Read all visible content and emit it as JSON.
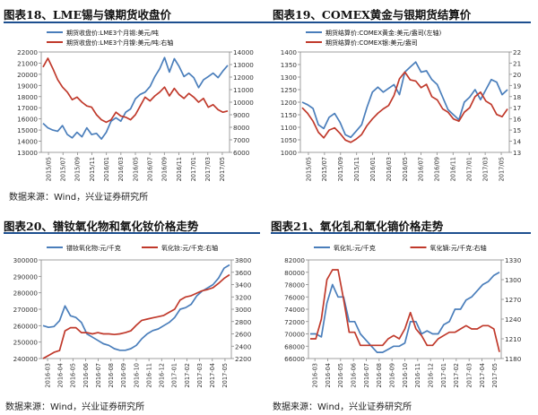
{
  "panels": [
    {
      "title": "图表18、LME锡与镍期货收盘价",
      "source": "数据来源：Wind，兴业证券研究所",
      "chart_data": {
        "type": "line",
        "title": "",
        "xlabel": "",
        "ylabel_left": "",
        "ylabel_right": "",
        "left_axis": {
          "min": 13000,
          "max": 22000,
          "ticks": [
            13000,
            14000,
            15000,
            16000,
            17000,
            18000,
            19000,
            20000,
            21000,
            22000
          ]
        },
        "right_axis": {
          "min": 6000,
          "max": 14000,
          "ticks": [
            6000,
            7000,
            8000,
            9000,
            10000,
            11000,
            12000,
            13000,
            14000
          ]
        },
        "x_ticks": [
          "2015/05",
          "2015/07",
          "2015/09",
          "2015/11",
          "2016/01",
          "2016/03",
          "2016/05",
          "2016/07",
          "2016/09",
          "2016/11",
          "2017/01",
          "2017/03",
          "2017/05"
        ],
        "legend_position": "top",
        "series": [
          {
            "name": "期货收盘价:LME3个月锡:美元/吨",
            "axis": "left",
            "color": "#4a7ebb",
            "values": [
              15600,
              15200,
              15000,
              14900,
              15400,
              14600,
              14300,
              14800,
              14400,
              15200,
              14600,
              14700,
              14200,
              14800,
              15800,
              16100,
              15800,
              16600,
              16900,
              17800,
              18200,
              18400,
              18900,
              19800,
              20500,
              21500,
              20200,
              21400,
              20700,
              19800,
              20100,
              19700,
              18800,
              19500,
              19800,
              20100,
              19700,
              20300,
              20800
            ]
          },
          {
            "name": "期货收盘价:LME3个月镍:美元/吨:右轴",
            "axis": "right",
            "color": "#c0392b",
            "values": [
              12800,
              13500,
              12700,
              11800,
              11200,
              10800,
              10200,
              10400,
              10000,
              9700,
              9600,
              9000,
              8600,
              8400,
              8600,
              9200,
              8900,
              8800,
              8600,
              9000,
              9700,
              10400,
              10100,
              10500,
              10800,
              11200,
              10500,
              11100,
              10600,
              10300,
              10700,
              10400,
              10000,
              10300,
              9600,
              9800,
              9400,
              9200,
              9300
            ]
          }
        ]
      }
    },
    {
      "title": "图表19、COMEX黄金与银期货结算价",
      "source": "",
      "chart_data": {
        "type": "line",
        "title": "",
        "xlabel": "",
        "ylabel_left": "",
        "ylabel_right": "",
        "left_axis": {
          "min": 1000,
          "max": 1400,
          "ticks": [
            1000,
            1050,
            1100,
            1150,
            1200,
            1250,
            1300,
            1350,
            1400
          ]
        },
        "right_axis": {
          "min": 13,
          "max": 22,
          "ticks": [
            13,
            14,
            15,
            16,
            17,
            18,
            19,
            20,
            21,
            22
          ]
        },
        "x_ticks": [
          "2015/05",
          "2015/07",
          "2015/09",
          "2015/11",
          "2016/01",
          "2016/03",
          "2016/05",
          "2016/07",
          "2016/09",
          "2016/11",
          "2017/01",
          "2017/03",
          "2017/05"
        ],
        "legend_position": "top",
        "series": [
          {
            "name": "期货结算价:COMEX黄金:美元/盎司(左轴)",
            "axis": "left",
            "color": "#4a7ebb",
            "values": [
              1200,
              1190,
              1175,
              1110,
              1095,
              1140,
              1155,
              1120,
              1070,
              1060,
              1085,
              1110,
              1180,
              1240,
              1260,
              1240,
              1255,
              1270,
              1230,
              1320,
              1340,
              1360,
              1320,
              1325,
              1290,
              1270,
              1220,
              1170,
              1150,
              1130,
              1200,
              1220,
              1250,
              1210,
              1250,
              1290,
              1280,
              1230,
              1250
            ]
          },
          {
            "name": "期货结算价:COMEX银:美元/盎司",
            "axis": "right",
            "color": "#c0392b",
            "values": [
              17.0,
              16.5,
              15.8,
              14.8,
              14.3,
              15.0,
              15.2,
              14.7,
              14.1,
              13.9,
              14.2,
              14.6,
              15.4,
              16.0,
              16.5,
              16.9,
              17.2,
              18.1,
              19.6,
              20.2,
              19.5,
              19.4,
              18.8,
              19.1,
              18.0,
              17.7,
              16.9,
              16.6,
              16.0,
              15.8,
              16.6,
              17.0,
              18.0,
              18.4,
              17.6,
              17.3,
              16.4,
              16.2,
              16.9
            ]
          }
        ]
      }
    },
    {
      "title": "图表20、镨钕氧化物和氧化钕价格走势",
      "source": "数据来源：Wind，兴业证券研究所",
      "chart_data": {
        "type": "line",
        "title": "",
        "xlabel": "",
        "ylabel_left": "",
        "ylabel_right": "",
        "left_axis": {
          "min": 240000,
          "max": 300000,
          "ticks": [
            240000,
            250000,
            260000,
            270000,
            280000,
            290000,
            300000
          ]
        },
        "right_axis": {
          "min": 2200,
          "max": 3800,
          "ticks": [
            2200,
            2400,
            2600,
            2800,
            3000,
            3200,
            3400,
            3600,
            3800
          ]
        },
        "x_ticks": [
          "2016-03",
          "2016-04",
          "2016-05",
          "2016-06",
          "2016-07",
          "2016-08",
          "2016-09",
          "2016-10",
          "2016-11",
          "2016-12",
          "2017-01",
          "2017-02",
          "2017-03",
          "2017-04",
          "2017-05"
        ],
        "legend_position": "top",
        "series": [
          {
            "name": "镨钕氧化物:元/千克",
            "axis": "left",
            "color": "#4a7ebb",
            "values": [
              260000,
              259000,
              259500,
              263000,
              272000,
              266000,
              265000,
              262000,
              255000,
              253000,
              251000,
              249000,
              248000,
              246000,
              245000,
              245000,
              246000,
              248000,
              252000,
              255000,
              257000,
              258000,
              260000,
              262000,
              265000,
              270000,
              271000,
              273000,
              278000,
              281000,
              283000,
              285000,
              289000,
              295000,
              297000
            ]
          },
          {
            "name": "氧化钕:元/千克:右轴",
            "axis": "right",
            "color": "#c0392b",
            "values": [
              2200,
              2250,
              2300,
              2330,
              2650,
              2700,
              2700,
              2620,
              2620,
              2600,
              2620,
              2600,
              2600,
              2590,
              2600,
              2620,
              2650,
              2740,
              2820,
              2840,
              2860,
              2880,
              2900,
              2950,
              3000,
              3150,
              3200,
              3220,
              3260,
              3300,
              3320,
              3350,
              3420,
              3500,
              3560
            ]
          }
        ]
      }
    },
    {
      "title": "图表21、氧化钆和氧化镝价格走势",
      "source": "数据来源：Wind，兴业证券研究所",
      "chart_data": {
        "type": "line",
        "title": "",
        "xlabel": "",
        "ylabel_left": "",
        "ylabel_right": "",
        "left_axis": {
          "min": 66000,
          "max": 82000,
          "ticks": [
            66000,
            68000,
            70000,
            72000,
            74000,
            76000,
            78000,
            80000,
            82000
          ]
        },
        "right_axis": {
          "min": 1180,
          "max": 1330,
          "ticks": [
            1180,
            1210,
            1240,
            1270,
            1300,
            1330
          ]
        },
        "x_ticks": [
          "2016-03",
          "2016-04",
          "2016-05",
          "2016-06",
          "2016-07",
          "2016-08",
          "2016-09",
          "2016-10",
          "2016-11",
          "2016-12",
          "2017-01",
          "2017-02",
          "2017-03",
          "2017-04",
          "2017-05"
        ],
        "legend_position": "top",
        "series": [
          {
            "name": "氧化钆:元/千克",
            "axis": "left",
            "color": "#4a7ebb",
            "values": [
              70000,
              70000,
              69500,
              75000,
              78000,
              76000,
              76000,
              72000,
              72000,
              70000,
              69000,
              68000,
              67000,
              67000,
              67500,
              68000,
              68000,
              68500,
              72000,
              72000,
              70000,
              70500,
              70000,
              70000,
              71500,
              72000,
              74000,
              74000,
              75500,
              76000,
              77000,
              78000,
              78500,
              79500,
              80000
            ]
          },
          {
            "name": "氧化镝:元/千克:右轴",
            "axis": "right",
            "color": "#c0392b",
            "values": [
              1210,
              1210,
              1240,
              1300,
              1315,
              1315,
              1270,
              1220,
              1220,
              1200,
              1200,
              1200,
              1200,
              1200,
              1210,
              1215,
              1210,
              1225,
              1250,
              1225,
              1215,
              1200,
              1200,
              1210,
              1215,
              1220,
              1220,
              1225,
              1230,
              1225,
              1225,
              1230,
              1230,
              1225,
              1190
            ]
          }
        ]
      }
    }
  ]
}
